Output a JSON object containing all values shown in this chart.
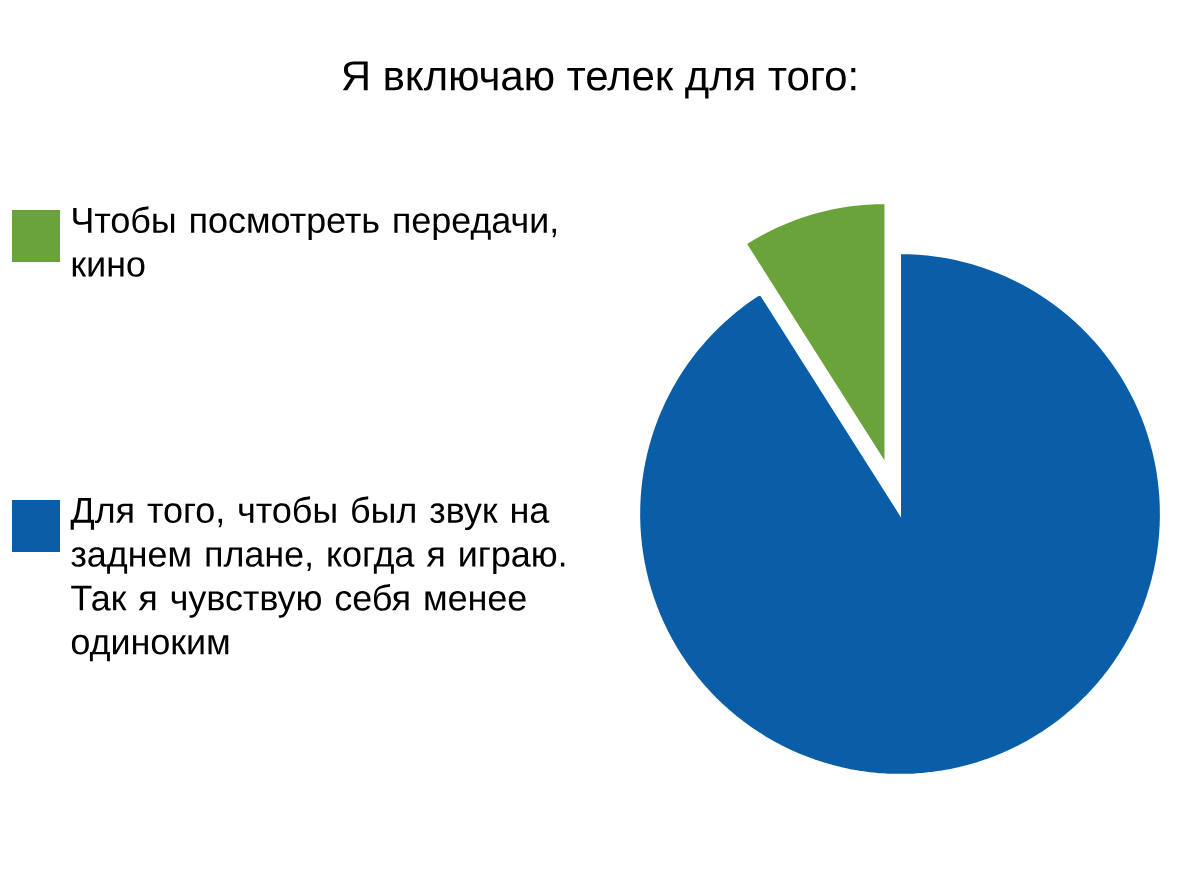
{
  "chart_data": {
    "type": "pie",
    "title": "Я включаю телек для того:",
    "categories": [
      "Чтобы посмотреть передачи, кино",
      "Для того, чтобы был звук на заднем плане, когда я играю. Так я чувствую себя менее одиноким"
    ],
    "values": [
      9,
      91
    ],
    "colors": [
      "#6aa33a",
      "#0a5ea8"
    ],
    "legend": "left"
  }
}
